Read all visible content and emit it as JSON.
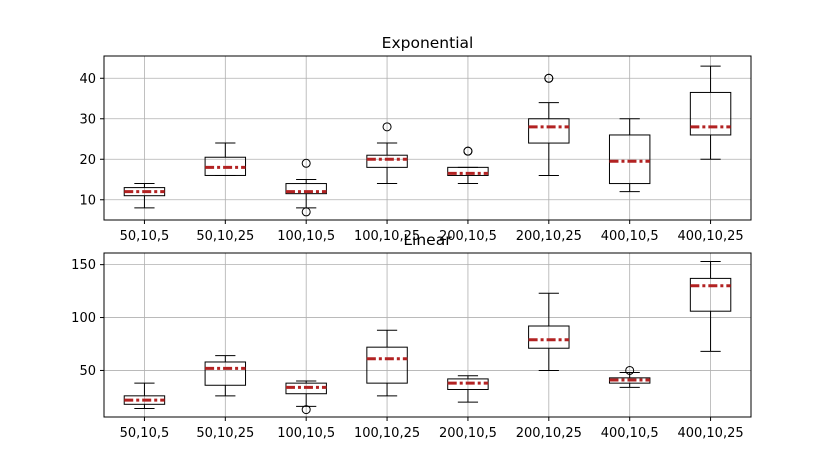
{
  "chart_data": [
    {
      "type": "box",
      "title": "Exponential",
      "categories": [
        "50,10,5",
        "50,10,25",
        "100,10,5",
        "100,10,25",
        "200,10,5",
        "200,10,25",
        "400,10,5",
        "400,10,25"
      ],
      "ylim": [
        5,
        45.5
      ],
      "yticks": [
        10,
        20,
        30,
        40
      ],
      "grid": true,
      "boxes": [
        {
          "whislo": 8,
          "q1": 11,
          "med": 12,
          "q3": 13,
          "whishi": 14,
          "fliers": []
        },
        {
          "whislo": 16,
          "q1": 16,
          "med": 18,
          "q3": 20.5,
          "whishi": 24,
          "fliers": []
        },
        {
          "whislo": 8,
          "q1": 11.5,
          "med": 12,
          "q3": 14,
          "whishi": 15,
          "fliers": [
            19,
            7
          ]
        },
        {
          "whislo": 14,
          "q1": 18,
          "med": 20,
          "q3": 21,
          "whishi": 24,
          "fliers": [
            28
          ]
        },
        {
          "whislo": 14,
          "q1": 16,
          "med": 16.5,
          "q3": 18,
          "whishi": 18,
          "fliers": [
            22,
            22
          ]
        },
        {
          "whislo": 16,
          "q1": 24,
          "med": 28,
          "q3": 30,
          "whishi": 34,
          "fliers": [
            40,
            40
          ]
        },
        {
          "whislo": 12,
          "q1": 14,
          "med": 19.5,
          "q3": 26,
          "whishi": 30,
          "fliers": []
        },
        {
          "whislo": 20,
          "q1": 26,
          "med": 28,
          "q3": 36.5,
          "whishi": 43,
          "fliers": []
        }
      ]
    },
    {
      "type": "box",
      "title": "Linear",
      "categories": [
        "50,10,5",
        "50,10,25",
        "100,10,5",
        "100,10,25",
        "200,10,5",
        "200,10,25",
        "400,10,5",
        "400,10,25"
      ],
      "ylim": [
        6,
        161
      ],
      "yticks": [
        50,
        100,
        150
      ],
      "grid": true,
      "boxes": [
        {
          "whislo": 14,
          "q1": 18,
          "med": 22,
          "q3": 26,
          "whishi": 38,
          "fliers": []
        },
        {
          "whislo": 26,
          "q1": 36,
          "med": 52,
          "q3": 58,
          "whishi": 64,
          "fliers": []
        },
        {
          "whislo": 16,
          "q1": 28,
          "med": 34,
          "q3": 38,
          "whishi": 40,
          "fliers": [
            13
          ]
        },
        {
          "whislo": 26,
          "q1": 38,
          "med": 61,
          "q3": 72,
          "whishi": 88,
          "fliers": []
        },
        {
          "whislo": 20,
          "q1": 32,
          "med": 38,
          "q3": 42,
          "whishi": 45,
          "fliers": []
        },
        {
          "whislo": 50,
          "q1": 71,
          "med": 79,
          "q3": 92,
          "whishi": 123,
          "fliers": []
        },
        {
          "whislo": 34,
          "q1": 38,
          "med": 41,
          "q3": 43,
          "whishi": 48,
          "fliers": [
            50
          ]
        },
        {
          "whislo": 68,
          "q1": 106,
          "med": 130,
          "q3": 137,
          "whishi": 153,
          "fliers": []
        }
      ]
    }
  ],
  "colors": {
    "median": "#b22222",
    "box": "#000000",
    "grid": "#b0b0b0"
  }
}
